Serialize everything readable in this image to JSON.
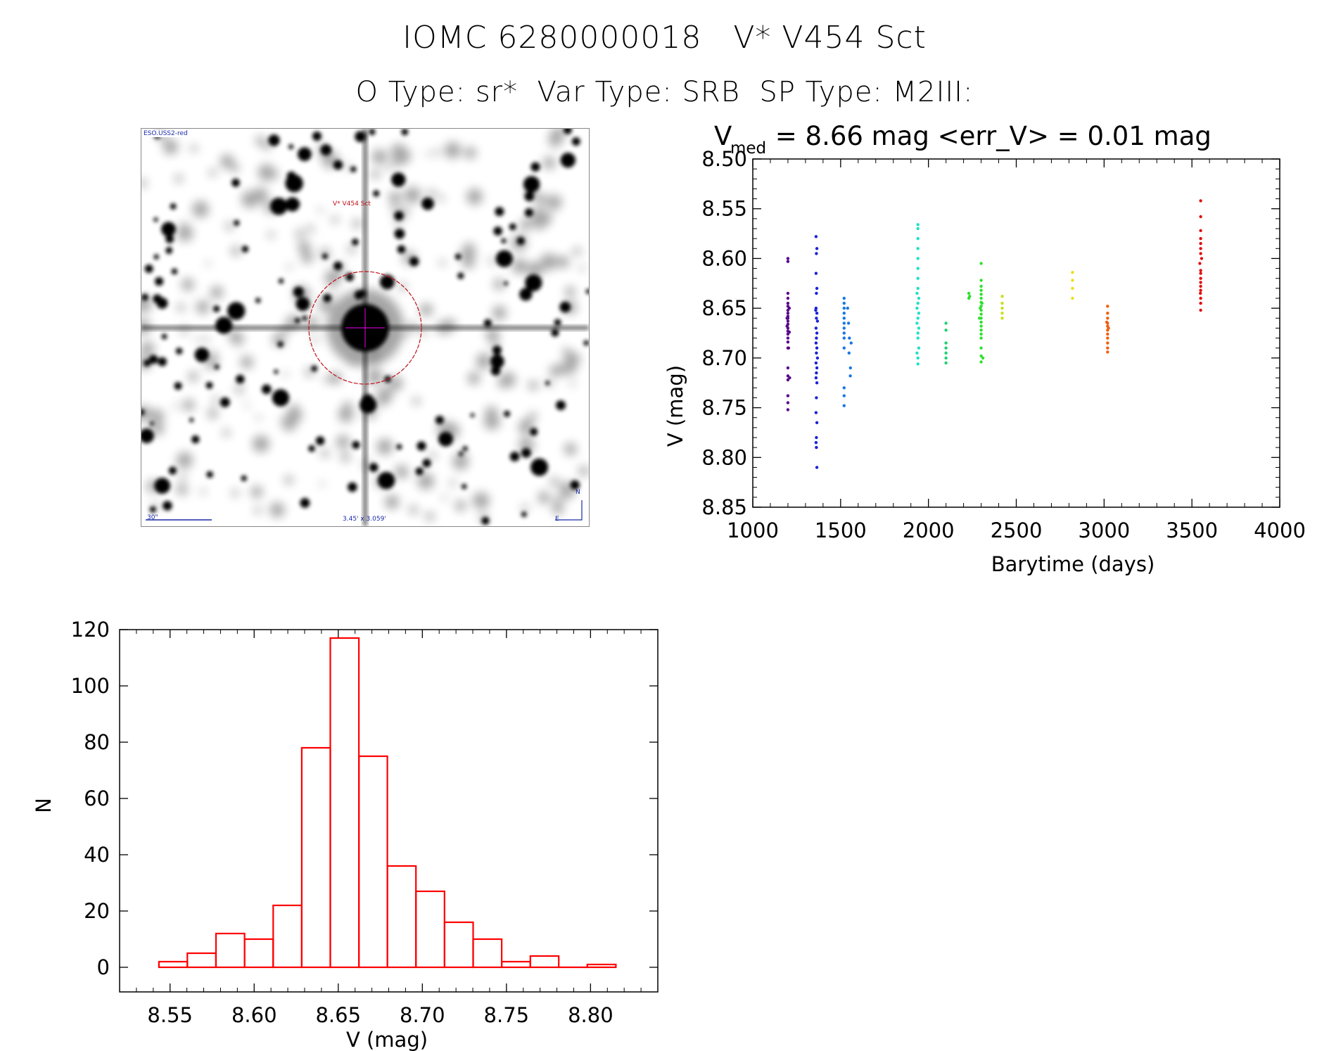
{
  "header": {
    "line1": "IOMC 6280000018   V* V454 Sct",
    "line2": "O Type: sr*  Var Type: SRB  SP Type: M2III:"
  },
  "sky_image": {
    "survey_label": "ESO.USS2-red",
    "object_label": "V* V454 Sct",
    "scale_label": "30\"",
    "fov_label": "3.45' x 3.059'",
    "north_label": "N",
    "east_label": "E",
    "colors": {
      "marker": "#c0101a",
      "overlay": "#1a2aa8"
    }
  },
  "chart_data": [
    {
      "type": "scatter",
      "title_main": "V",
      "title_sub": "med",
      "title_rest": " = 8.66 mag <err_V> = 0.01 mag",
      "xlabel": "Barytime (days)",
      "ylabel": "V (mag)",
      "xlim": [
        1000,
        4000
      ],
      "ylim": [
        8.85,
        8.5
      ],
      "y_inverted": true,
      "xticks": [
        1000,
        1500,
        2000,
        2500,
        3000,
        3500,
        4000
      ],
      "xtick_labels": [
        "1000",
        "1500",
        "2000",
        "2500",
        "3000",
        "3500",
        "4000"
      ],
      "yticks": [
        8.5,
        8.55,
        8.6,
        8.65,
        8.7,
        8.75,
        8.8,
        8.85
      ],
      "ytick_labels": [
        "8.50",
        "8.55",
        "8.60",
        "8.65",
        "8.70",
        "8.75",
        "8.80",
        "8.85"
      ],
      "series": [
        {
          "color": "#5a0a8a",
          "points": [
            [
              1200,
              8.6
            ],
            [
              1200,
              8.603
            ],
            [
              1200,
              8.635
            ],
            [
              1200,
              8.64
            ],
            [
              1200,
              8.645
            ],
            [
              1200,
              8.648
            ],
            [
              1200,
              8.652
            ],
            [
              1200,
              8.655
            ],
            [
              1200,
              8.658
            ],
            [
              1200,
              8.66
            ],
            [
              1200,
              8.663
            ],
            [
              1200,
              8.666
            ],
            [
              1200,
              8.67
            ],
            [
              1200,
              8.673
            ],
            [
              1200,
              8.676
            ],
            [
              1200,
              8.68
            ],
            [
              1200,
              8.684
            ],
            [
              1200,
              8.69
            ],
            [
              1200,
              8.71
            ],
            [
              1200,
              8.718
            ],
            [
              1200,
              8.722
            ],
            [
              1200,
              8.738
            ],
            [
              1200,
              8.745
            ],
            [
              1200,
              8.752
            ],
            [
              1195,
              8.66
            ],
            [
              1195,
              8.668
            ],
            [
              1208,
              8.65
            ],
            [
              1208,
              8.674
            ],
            [
              1210,
              8.72
            ],
            [
              1204,
              8.69
            ]
          ]
        },
        {
          "color": "#1a22d8",
          "points": [
            [
              1360,
              8.578
            ],
            [
              1365,
              8.59
            ],
            [
              1362,
              8.595
            ],
            [
              1360,
              8.615
            ],
            [
              1365,
              8.63
            ],
            [
              1362,
              8.635
            ],
            [
              1360,
              8.65
            ],
            [
              1365,
              8.655
            ],
            [
              1362,
              8.66
            ],
            [
              1368,
              8.663
            ],
            [
              1358,
              8.652
            ],
            [
              1360,
              8.67
            ],
            [
              1365,
              8.675
            ],
            [
              1362,
              8.68
            ],
            [
              1360,
              8.685
            ],
            [
              1365,
              8.69
            ],
            [
              1362,
              8.695
            ],
            [
              1368,
              8.7
            ],
            [
              1360,
              8.705
            ],
            [
              1365,
              8.71
            ],
            [
              1362,
              8.715
            ],
            [
              1360,
              8.72
            ],
            [
              1365,
              8.725
            ],
            [
              1362,
              8.74
            ],
            [
              1360,
              8.755
            ],
            [
              1365,
              8.765
            ],
            [
              1362,
              8.78
            ],
            [
              1360,
              8.785
            ],
            [
              1362,
              8.79
            ],
            [
              1365,
              8.81
            ]
          ]
        },
        {
          "color": "#1a78e0",
          "points": [
            [
              1520,
              8.64
            ],
            [
              1520,
              8.645
            ],
            [
              1520,
              8.65
            ],
            [
              1520,
              8.655
            ],
            [
              1520,
              8.66
            ],
            [
              1520,
              8.665
            ],
            [
              1520,
              8.67
            ],
            [
              1520,
              8.675
            ],
            [
              1520,
              8.68
            ],
            [
              1520,
              8.69
            ],
            [
              1520,
              8.73
            ],
            [
              1520,
              8.738
            ],
            [
              1520,
              8.748
            ],
            [
              1540,
              8.65
            ],
            [
              1545,
              8.665
            ],
            [
              1550,
              8.68
            ],
            [
              1548,
              8.695
            ],
            [
              1556,
              8.71
            ],
            [
              1555,
              8.718
            ],
            [
              1560,
              8.685
            ]
          ]
        },
        {
          "color": "#20e0c8",
          "points": [
            [
              1940,
              8.566
            ],
            [
              1940,
              8.57
            ],
            [
              1940,
              8.58
            ],
            [
              1940,
              8.59
            ],
            [
              1940,
              8.6
            ],
            [
              1940,
              8.61
            ],
            [
              1940,
              8.62
            ],
            [
              1940,
              8.63
            ],
            [
              1935,
              8.635
            ],
            [
              1945,
              8.64
            ],
            [
              1940,
              8.645
            ],
            [
              1935,
              8.65
            ],
            [
              1945,
              8.655
            ],
            [
              1940,
              8.66
            ],
            [
              1935,
              8.665
            ],
            [
              1945,
              8.67
            ],
            [
              1940,
              8.675
            ],
            [
              1940,
              8.68
            ],
            [
              1945,
              8.69
            ],
            [
              1935,
              8.695
            ],
            [
              1940,
              8.7
            ],
            [
              1940,
              8.706
            ]
          ]
        },
        {
          "color": "#20d070",
          "points": [
            [
              2100,
              8.665
            ],
            [
              2100,
              8.672
            ],
            [
              2100,
              8.685
            ],
            [
              2100,
              8.69
            ],
            [
              2100,
              8.695
            ],
            [
              2100,
              8.7
            ],
            [
              2100,
              8.705
            ]
          ]
        },
        {
          "color": "#30e030",
          "points": [
            [
              2230,
              8.635
            ],
            [
              2230,
              8.64
            ],
            [
              2235,
              8.638
            ],
            [
              2300,
              8.605
            ],
            [
              2300,
              8.622
            ],
            [
              2300,
              8.628
            ],
            [
              2300,
              8.632
            ],
            [
              2300,
              8.636
            ],
            [
              2300,
              8.64
            ],
            [
              2300,
              8.644
            ],
            [
              2300,
              8.648
            ],
            [
              2300,
              8.652
            ],
            [
              2300,
              8.656
            ],
            [
              2300,
              8.66
            ],
            [
              2300,
              8.664
            ],
            [
              2300,
              8.668
            ],
            [
              2300,
              8.672
            ],
            [
              2300,
              8.676
            ],
            [
              2300,
              8.68
            ],
            [
              2300,
              8.69
            ],
            [
              2300,
              8.698
            ],
            [
              2300,
              8.704
            ],
            [
              2310,
              8.7
            ],
            [
              2290,
              8.66
            ],
            [
              2295,
              8.65
            ],
            [
              2305,
              8.645
            ]
          ]
        },
        {
          "color": "#c8e020",
          "points": [
            [
              2420,
              8.638
            ],
            [
              2420,
              8.645
            ],
            [
              2420,
              8.65
            ],
            [
              2420,
              8.655
            ],
            [
              2420,
              8.66
            ]
          ]
        },
        {
          "color": "#e8e020",
          "points": [
            [
              2820,
              8.614
            ],
            [
              2820,
              8.622
            ],
            [
              2820,
              8.63
            ],
            [
              2820,
              8.64
            ]
          ]
        },
        {
          "color": "#f06010",
          "points": [
            [
              3020,
              8.648
            ],
            [
              3020,
              8.655
            ],
            [
              3020,
              8.66
            ],
            [
              3020,
              8.665
            ],
            [
              3020,
              8.668
            ],
            [
              3020,
              8.672
            ],
            [
              3020,
              8.676
            ],
            [
              3020,
              8.68
            ],
            [
              3020,
              8.685
            ],
            [
              3020,
              8.69
            ],
            [
              3020,
              8.694
            ],
            [
              3015,
              8.664
            ],
            [
              3025,
              8.67
            ]
          ]
        },
        {
          "color": "#e01010",
          "points": [
            [
              3550,
              8.542
            ],
            [
              3550,
              8.558
            ],
            [
              3550,
              8.572
            ],
            [
              3550,
              8.58
            ],
            [
              3550,
              8.585
            ],
            [
              3550,
              8.59
            ],
            [
              3550,
              8.595
            ],
            [
              3550,
              8.612
            ],
            [
              3550,
              8.615
            ],
            [
              3550,
              8.62
            ],
            [
              3550,
              8.624
            ],
            [
              3550,
              8.628
            ],
            [
              3550,
              8.632
            ],
            [
              3550,
              8.64
            ],
            [
              3550,
              8.645
            ],
            [
              3550,
              8.652
            ],
            [
              3545,
              8.605
            ],
            [
              3555,
              8.6
            ],
            [
              3548,
              8.635
            ]
          ]
        }
      ]
    },
    {
      "type": "bar",
      "subtype": "histogram",
      "xlabel": "V (mag)",
      "ylabel": "N",
      "xlim": [
        8.52,
        8.84
      ],
      "ylim": [
        0,
        120
      ],
      "xticks": [
        8.55,
        8.6,
        8.65,
        8.7,
        8.75,
        8.8
      ],
      "xtick_labels": [
        "8.55",
        "8.60",
        "8.65",
        "8.70",
        "8.75",
        "8.80"
      ],
      "yticks": [
        0,
        20,
        40,
        60,
        80,
        100,
        120
      ],
      "ytick_labels": [
        "0",
        "20",
        "40",
        "60",
        "80",
        "100",
        "120"
      ],
      "color": "#ff0000",
      "bins": [
        {
          "x0": 8.5434,
          "x1": 8.5603,
          "count": 2
        },
        {
          "x0": 8.5603,
          "x1": 8.5773,
          "count": 5
        },
        {
          "x0": 8.5773,
          "x1": 8.5943,
          "count": 12
        },
        {
          "x0": 8.5943,
          "x1": 8.6113,
          "count": 10
        },
        {
          "x0": 8.6113,
          "x1": 8.6283,
          "count": 22
        },
        {
          "x0": 8.6283,
          "x1": 8.6453,
          "count": 78
        },
        {
          "x0": 8.6453,
          "x1": 8.6623,
          "count": 117
        },
        {
          "x0": 8.6623,
          "x1": 8.6792,
          "count": 75
        },
        {
          "x0": 8.6792,
          "x1": 8.6962,
          "count": 36
        },
        {
          "x0": 8.6962,
          "x1": 8.7132,
          "count": 27
        },
        {
          "x0": 8.7132,
          "x1": 8.7302,
          "count": 16
        },
        {
          "x0": 8.7302,
          "x1": 8.7472,
          "count": 10
        },
        {
          "x0": 8.7472,
          "x1": 8.7642,
          "count": 2
        },
        {
          "x0": 8.7642,
          "x1": 8.7811,
          "count": 4
        },
        {
          "x0": 8.7811,
          "x1": 8.7981,
          "count": 0
        },
        {
          "x0": 8.7981,
          "x1": 8.8151,
          "count": 1
        }
      ]
    }
  ]
}
